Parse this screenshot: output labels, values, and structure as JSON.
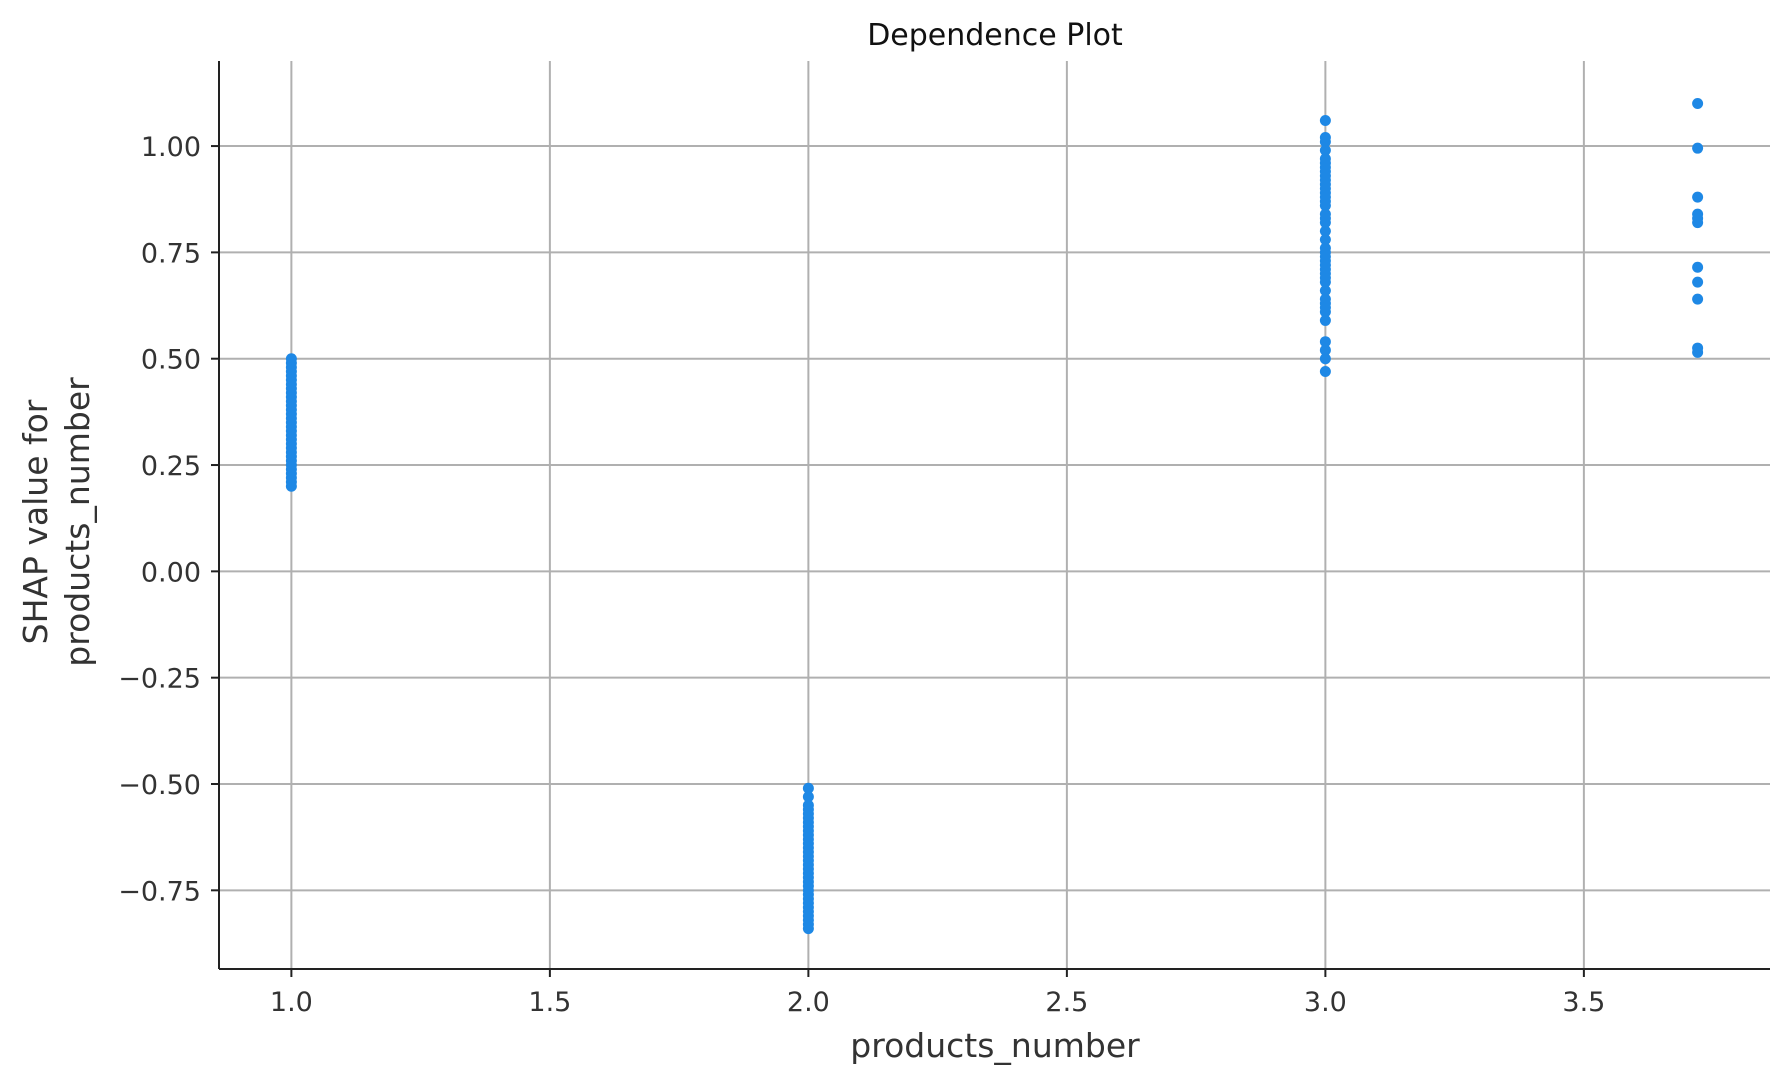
{
  "chart_data": {
    "type": "scatter",
    "title": "Dependence Plot",
    "xlabel": "products_number",
    "ylabel_lines": [
      "SHAP value for",
      "products_number"
    ],
    "xlim": [
      0.86,
      3.86
    ],
    "ylim": [
      -0.935,
      1.2
    ],
    "xticks": [
      {
        "value": 1.0,
        "label": "1.0"
      },
      {
        "value": 1.5,
        "label": "1.5"
      },
      {
        "value": 2.0,
        "label": "2.0"
      },
      {
        "value": 2.5,
        "label": "2.5"
      },
      {
        "value": 3.0,
        "label": "3.0"
      },
      {
        "value": 3.5,
        "label": "3.5"
      }
    ],
    "yticks": [
      {
        "value": 1.0,
        "label": "1.00"
      },
      {
        "value": 0.75,
        "label": "0.75"
      },
      {
        "value": 0.5,
        "label": "0.50"
      },
      {
        "value": 0.25,
        "label": "0.25"
      },
      {
        "value": 0.0,
        "label": "0.00"
      },
      {
        "value": -0.25,
        "label": "−0.25"
      },
      {
        "value": -0.5,
        "label": "−0.50"
      },
      {
        "value": -0.75,
        "label": "−0.75"
      }
    ],
    "grid": true,
    "point_color": "#1e88e5",
    "series": [
      {
        "x": 1.0,
        "y": [
          0.5,
          0.49,
          0.48,
          0.47,
          0.46,
          0.45,
          0.44,
          0.43,
          0.42,
          0.41,
          0.4,
          0.39,
          0.38,
          0.37,
          0.36,
          0.35,
          0.34,
          0.33,
          0.32,
          0.31,
          0.3,
          0.29,
          0.28,
          0.27,
          0.26,
          0.25,
          0.24,
          0.23,
          0.22,
          0.21,
          0.2
        ]
      },
      {
        "x": 2.0,
        "y": [
          -0.51,
          -0.53,
          -0.55,
          -0.56,
          -0.57,
          -0.58,
          -0.59,
          -0.6,
          -0.61,
          -0.62,
          -0.63,
          -0.64,
          -0.65,
          -0.66,
          -0.67,
          -0.68,
          -0.69,
          -0.7,
          -0.71,
          -0.72,
          -0.73,
          -0.74,
          -0.75,
          -0.76,
          -0.77,
          -0.78,
          -0.79,
          -0.8,
          -0.81,
          -0.82,
          -0.83,
          -0.84
        ]
      },
      {
        "x": 3.0,
        "y": [
          1.06,
          1.02,
          1.01,
          0.99,
          0.97,
          0.96,
          0.95,
          0.94,
          0.93,
          0.92,
          0.91,
          0.9,
          0.89,
          0.88,
          0.87,
          0.86,
          0.84,
          0.83,
          0.82,
          0.8,
          0.78,
          0.76,
          0.75,
          0.74,
          0.73,
          0.72,
          0.71,
          0.7,
          0.69,
          0.68,
          0.66,
          0.64,
          0.63,
          0.62,
          0.61,
          0.59,
          0.54,
          0.52,
          0.5,
          0.47
        ]
      },
      {
        "x": 3.72,
        "y": [
          1.1,
          0.995,
          0.88,
          0.84,
          0.83,
          0.82,
          0.715,
          0.68,
          0.64,
          0.525,
          0.515
        ]
      }
    ]
  }
}
